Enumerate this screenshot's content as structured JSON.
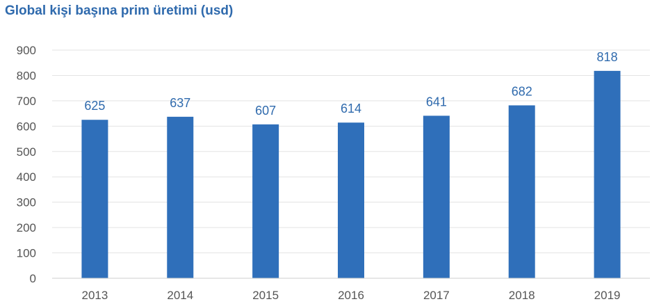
{
  "chart_data": {
    "type": "bar",
    "title": "Global kişi başına prim üretimi (usd)",
    "categories": [
      "2013",
      "2014",
      "2015",
      "2016",
      "2017",
      "2018",
      "2019"
    ],
    "series": [
      {
        "values": [
          625,
          637,
          607,
          614,
          641,
          682,
          818
        ]
      }
    ],
    "data_labels": [
      "625",
      "637",
      "607",
      "614",
      "641",
      "682",
      "818"
    ],
    "xlabel": "",
    "ylabel": "",
    "ylim": [
      0,
      900
    ],
    "yticks": [
      0,
      100,
      200,
      300,
      400,
      500,
      600,
      700,
      800,
      900
    ],
    "grid": true,
    "legend": "none",
    "colors": {
      "bar": "#2f6fba",
      "title": "#2f6aad",
      "data_label": "#2f6aad",
      "grid": "#e3e3e3",
      "axis": "#cfcfcf"
    }
  }
}
